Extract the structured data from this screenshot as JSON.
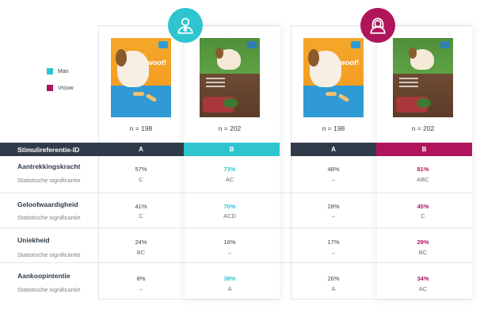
{
  "legend": [
    {
      "label": "Man",
      "color": "#2ec5d0"
    },
    {
      "label": "Vrouw",
      "color": "#b0155c"
    }
  ],
  "colors": {
    "men": "#2ec5d0",
    "women": "#b0155c",
    "header_dark": "#2f3b48"
  },
  "icons": {
    "men": "man-avatar-icon",
    "women": "woman-avatar-icon"
  },
  "panels": {
    "men": {
      "n_a": "n =  198",
      "n_b": "n =  202"
    },
    "women": {
      "n_a": "n =  198",
      "n_b": "n =  202"
    }
  },
  "packages": {
    "a_woof": "woof!",
    "b_label": "it's All Natural"
  },
  "header": {
    "row_label": "Stimulireferentie-ID",
    "col_a": "A",
    "col_b": "B"
  },
  "metrics": [
    {
      "title": "Aantrekkingskracht",
      "sub": "Statistische significantie",
      "men": {
        "a": "57%",
        "a_sig": "C",
        "b": "73%",
        "b_sig": "AC"
      },
      "women": {
        "a": "48%",
        "a_sig": "–",
        "b": "81%",
        "b_sig": "ABC"
      }
    },
    {
      "title": "Geloofwaardigheid",
      "sub": "Statistische significantie",
      "men": {
        "a": "41%",
        "a_sig": "C",
        "b": "70%",
        "b_sig": "ACD"
      },
      "women": {
        "a": "28%",
        "a_sig": "–",
        "b": "45%",
        "b_sig": "C"
      }
    },
    {
      "title": "Uniekheid",
      "sub": "Statistische significantie",
      "men": {
        "a": "24%",
        "a_sig": "BC",
        "b": "16%",
        "b_sig": "–"
      },
      "women": {
        "a": "17%",
        "a_sig": "–",
        "b": "29%",
        "b_sig": "BC"
      }
    },
    {
      "title": "Aankoopintentie",
      "sub": "Statistische significantie",
      "men": {
        "a": "8%",
        "a_sig": "–",
        "b": "38%",
        "b_sig": "A"
      },
      "women": {
        "a": "26%",
        "a_sig": "A",
        "b": "34%",
        "b_sig": "AC"
      }
    }
  ]
}
